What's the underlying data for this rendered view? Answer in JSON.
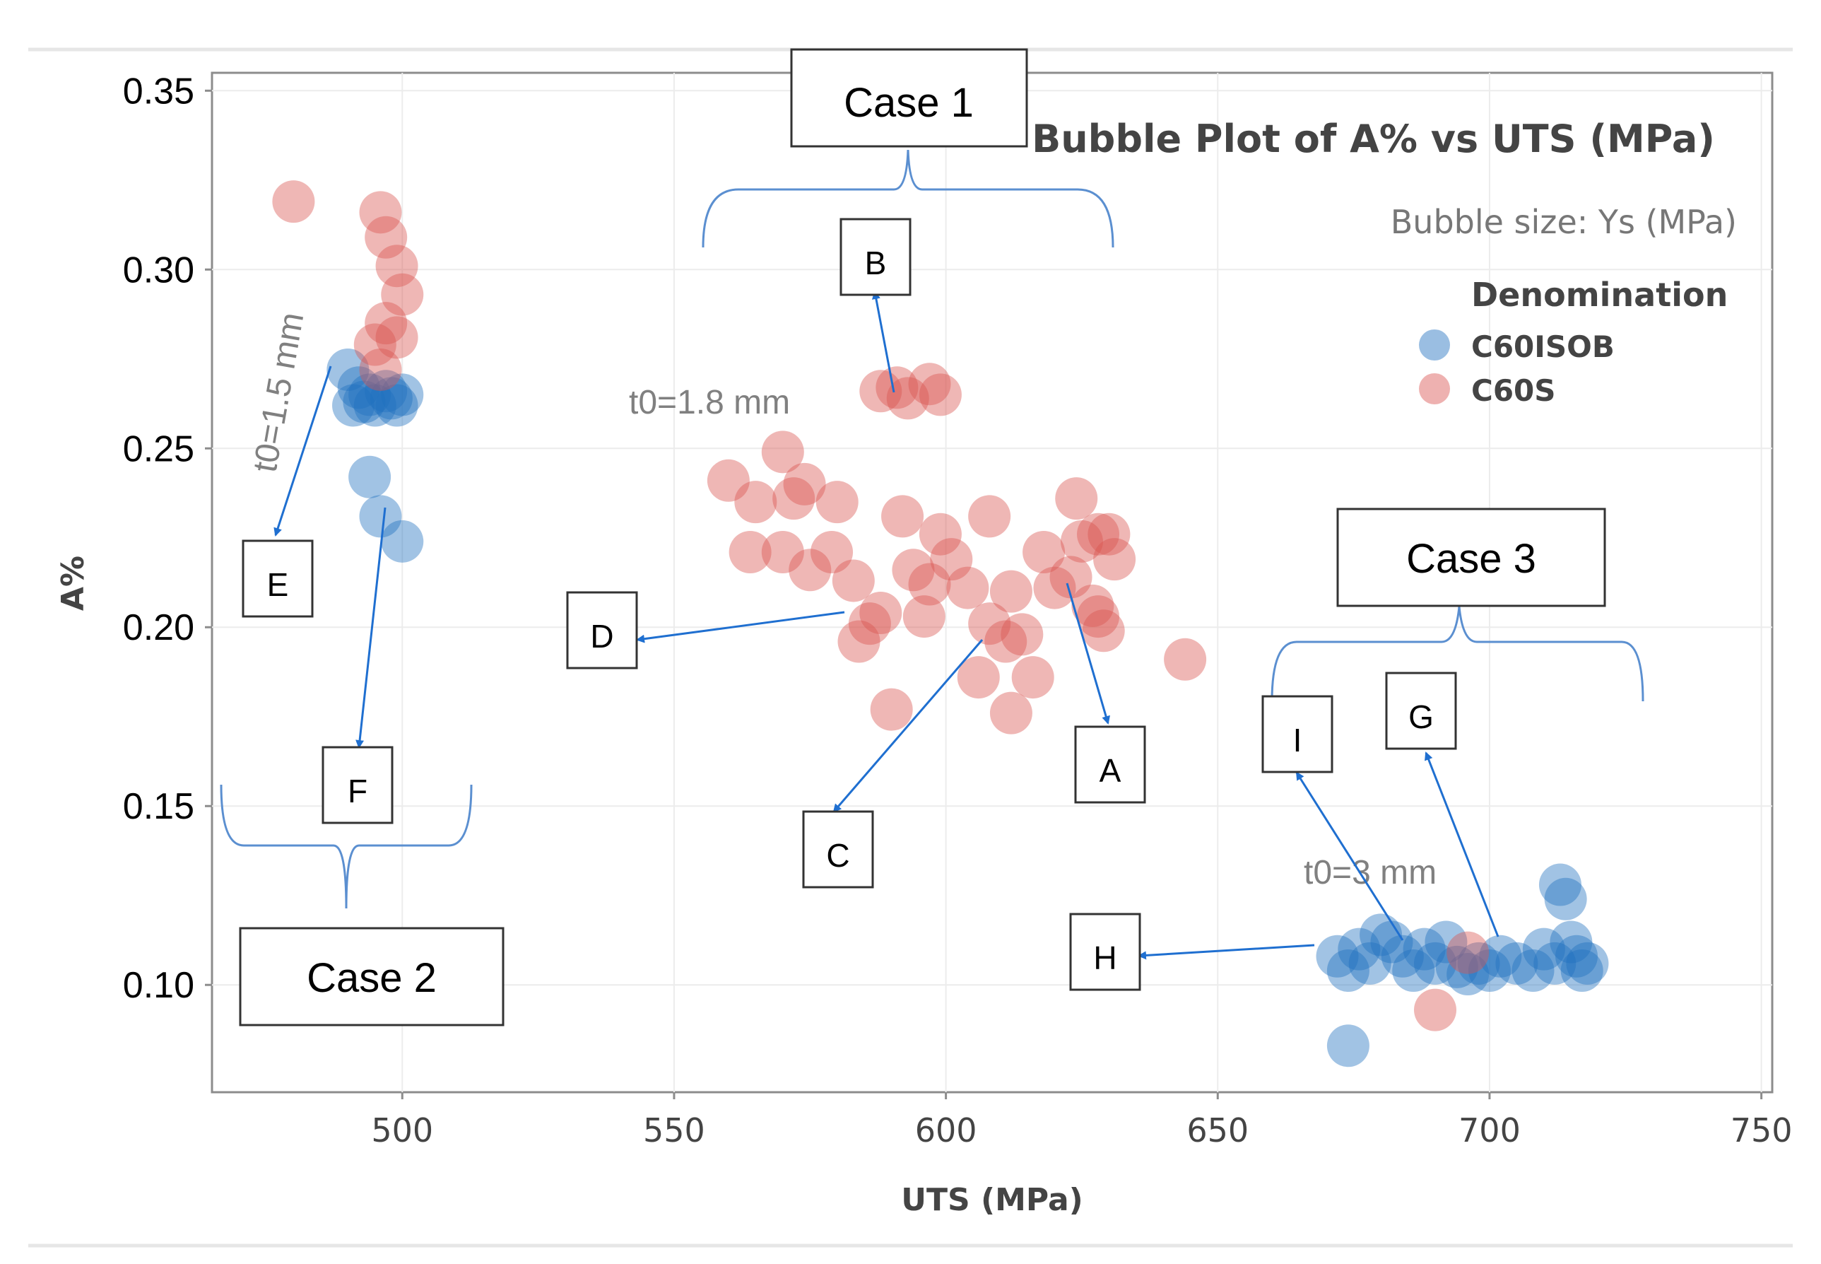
{
  "chart_data": {
    "type": "scatter",
    "subtype": "bubble",
    "title": "Bubble Plot of A% vs UTS (MPa)",
    "subtitle": "Bubble size: Ys (MPa)",
    "xlabel": "UTS (MPa)",
    "ylabel": "A%",
    "xlim": [
      465,
      752
    ],
    "ylim": [
      0.07,
      0.355
    ],
    "xticks": [
      500,
      550,
      600,
      650,
      700,
      750
    ],
    "yticks": [
      0.1,
      0.15,
      0.2,
      0.25,
      0.3,
      0.35
    ],
    "xtick_labels": [
      "500",
      "550",
      "600",
      "650",
      "700",
      "750"
    ],
    "ytick_labels": [
      "0.10",
      "0.15",
      "0.20",
      "0.25",
      "0.30",
      "0.35"
    ],
    "grid": true,
    "legend": {
      "title": "Denomination",
      "position": "top-right",
      "entries": [
        "C60ISOB",
        "C60S"
      ]
    },
    "series": [
      {
        "name": "C60ISOB",
        "color": "#1f6fbf",
        "points": [
          {
            "x": 490,
            "y": 0.272
          },
          {
            "x": 491,
            "y": 0.262
          },
          {
            "x": 492,
            "y": 0.267
          },
          {
            "x": 493,
            "y": 0.263
          },
          {
            "x": 494,
            "y": 0.265
          },
          {
            "x": 495,
            "y": 0.262
          },
          {
            "x": 497,
            "y": 0.266
          },
          {
            "x": 498,
            "y": 0.264
          },
          {
            "x": 499,
            "y": 0.262
          },
          {
            "x": 500,
            "y": 0.265
          },
          {
            "x": 494,
            "y": 0.242
          },
          {
            "x": 496,
            "y": 0.231
          },
          {
            "x": 500,
            "y": 0.224
          },
          {
            "x": 672,
            "y": 0.108
          },
          {
            "x": 674,
            "y": 0.104
          },
          {
            "x": 676,
            "y": 0.11
          },
          {
            "x": 678,
            "y": 0.106
          },
          {
            "x": 680,
            "y": 0.114
          },
          {
            "x": 682,
            "y": 0.112
          },
          {
            "x": 684,
            "y": 0.108
          },
          {
            "x": 686,
            "y": 0.104
          },
          {
            "x": 688,
            "y": 0.11
          },
          {
            "x": 690,
            "y": 0.106
          },
          {
            "x": 692,
            "y": 0.112
          },
          {
            "x": 694,
            "y": 0.105
          },
          {
            "x": 696,
            "y": 0.103
          },
          {
            "x": 698,
            "y": 0.106
          },
          {
            "x": 700,
            "y": 0.104
          },
          {
            "x": 702,
            "y": 0.108
          },
          {
            "x": 705,
            "y": 0.106
          },
          {
            "x": 708,
            "y": 0.104
          },
          {
            "x": 710,
            "y": 0.11
          },
          {
            "x": 712,
            "y": 0.106
          },
          {
            "x": 713,
            "y": 0.128
          },
          {
            "x": 714,
            "y": 0.124
          },
          {
            "x": 715,
            "y": 0.112
          },
          {
            "x": 716,
            "y": 0.108
          },
          {
            "x": 717,
            "y": 0.104
          },
          {
            "x": 718,
            "y": 0.106
          },
          {
            "x": 674,
            "y": 0.083
          }
        ]
      },
      {
        "name": "C60S",
        "color": "#d9534f",
        "points": [
          {
            "x": 480,
            "y": 0.319
          },
          {
            "x": 496,
            "y": 0.316
          },
          {
            "x": 497,
            "y": 0.309
          },
          {
            "x": 499,
            "y": 0.301
          },
          {
            "x": 500,
            "y": 0.293
          },
          {
            "x": 497,
            "y": 0.285
          },
          {
            "x": 495,
            "y": 0.279
          },
          {
            "x": 499,
            "y": 0.281
          },
          {
            "x": 496,
            "y": 0.272
          },
          {
            "x": 588,
            "y": 0.266
          },
          {
            "x": 591,
            "y": 0.267
          },
          {
            "x": 593,
            "y": 0.264
          },
          {
            "x": 597,
            "y": 0.268
          },
          {
            "x": 599,
            "y": 0.265
          },
          {
            "x": 560,
            "y": 0.241
          },
          {
            "x": 565,
            "y": 0.235
          },
          {
            "x": 570,
            "y": 0.249
          },
          {
            "x": 572,
            "y": 0.236
          },
          {
            "x": 574,
            "y": 0.24
          },
          {
            "x": 580,
            "y": 0.235
          },
          {
            "x": 564,
            "y": 0.221
          },
          {
            "x": 570,
            "y": 0.221
          },
          {
            "x": 575,
            "y": 0.216
          },
          {
            "x": 579,
            "y": 0.221
          },
          {
            "x": 583,
            "y": 0.213
          },
          {
            "x": 588,
            "y": 0.204
          },
          {
            "x": 586,
            "y": 0.201
          },
          {
            "x": 584,
            "y": 0.196
          },
          {
            "x": 592,
            "y": 0.231
          },
          {
            "x": 594,
            "y": 0.216
          },
          {
            "x": 597,
            "y": 0.212
          },
          {
            "x": 599,
            "y": 0.226
          },
          {
            "x": 601,
            "y": 0.219
          },
          {
            "x": 596,
            "y": 0.203
          },
          {
            "x": 604,
            "y": 0.211
          },
          {
            "x": 608,
            "y": 0.231
          },
          {
            "x": 612,
            "y": 0.21
          },
          {
            "x": 614,
            "y": 0.198
          },
          {
            "x": 608,
            "y": 0.201
          },
          {
            "x": 611,
            "y": 0.196
          },
          {
            "x": 606,
            "y": 0.186
          },
          {
            "x": 616,
            "y": 0.186
          },
          {
            "x": 612,
            "y": 0.176
          },
          {
            "x": 618,
            "y": 0.221
          },
          {
            "x": 620,
            "y": 0.211
          },
          {
            "x": 623,
            "y": 0.214
          },
          {
            "x": 625,
            "y": 0.224
          },
          {
            "x": 624,
            "y": 0.236
          },
          {
            "x": 628,
            "y": 0.226
          },
          {
            "x": 630,
            "y": 0.226
          },
          {
            "x": 631,
            "y": 0.219
          },
          {
            "x": 627,
            "y": 0.206
          },
          {
            "x": 628,
            "y": 0.203
          },
          {
            "x": 629,
            "y": 0.199
          },
          {
            "x": 644,
            "y": 0.191
          },
          {
            "x": 590,
            "y": 0.177
          },
          {
            "x": 696,
            "y": 0.109
          },
          {
            "x": 690,
            "y": 0.093
          }
        ]
      }
    ],
    "annotations": {
      "groups": [
        "Case 1",
        "Case 2",
        "Case 3"
      ],
      "thickness_labels": [
        "t0=1.8 mm",
        "t0=1.5 mm",
        "t0=3 mm"
      ],
      "letters": [
        "A",
        "B",
        "C",
        "D",
        "E",
        "F",
        "G",
        "H",
        "I"
      ]
    }
  }
}
